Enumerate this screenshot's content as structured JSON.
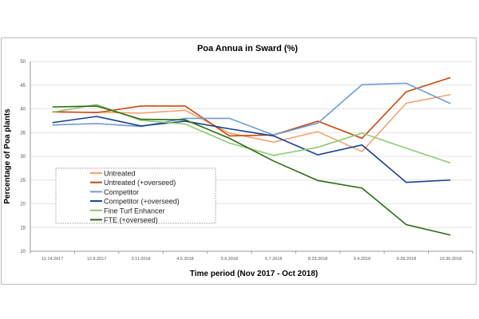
{
  "chart_data": {
    "type": "line",
    "title": "Poa Annua in Sward (%)",
    "xlabel": "Time period (Nov 2017 - Oct 2018)",
    "ylabel": "Percentage of Poa plants",
    "ylim": [
      10,
      50
    ],
    "yticks": [
      10,
      15,
      20,
      25,
      30,
      35,
      40,
      45,
      50
    ],
    "grid": true,
    "legend": "bottom-left",
    "categories": [
      "11.14.2017",
      "12.8.2017",
      "3.11.2018",
      "4.5.2018",
      "5.9.2018",
      "6.7.2018",
      "8.23.2018",
      "9.4.2018",
      "9.29.2018",
      "10.30.2018"
    ],
    "series": [
      {
        "name": "Untreated",
        "color": "#f4a26b",
        "values": [
          39.3,
          39.3,
          39.1,
          39.7,
          34.9,
          33.0,
          35.2,
          31.0,
          41.2,
          43.0
        ]
      },
      {
        "name": "Untreated (+overseed)",
        "color": "#c9480e",
        "values": [
          39.4,
          39.2,
          40.6,
          40.6,
          34.3,
          34.5,
          37.4,
          33.8,
          43.6,
          46.6
        ]
      },
      {
        "name": "Competitor",
        "color": "#6f9bd6",
        "values": [
          36.6,
          36.9,
          36.3,
          38.0,
          38.0,
          34.5,
          37.0,
          45.1,
          45.4,
          41.1
        ]
      },
      {
        "name": "Competitor (+overseed)",
        "color": "#153f8c",
        "values": [
          37.1,
          38.4,
          36.4,
          37.4,
          35.8,
          34.3,
          30.3,
          32.4,
          24.5,
          25.0
        ]
      },
      {
        "name": "Fine Turf Enhancer",
        "color": "#8fca73",
        "values": [
          39.3,
          40.9,
          37.6,
          36.8,
          32.8,
          30.2,
          31.9,
          34.9,
          31.7,
          28.6
        ]
      },
      {
        "name": "FTE (+overseed)",
        "color": "#2b6a14",
        "values": [
          40.4,
          40.6,
          37.8,
          37.7,
          33.8,
          29.0,
          24.9,
          23.3,
          15.6,
          13.4
        ]
      }
    ]
  }
}
